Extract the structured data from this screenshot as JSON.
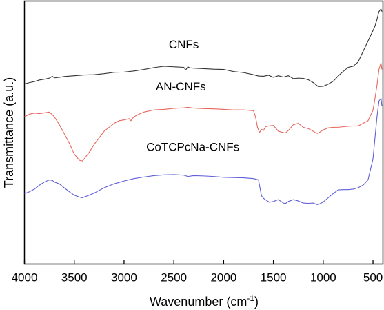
{
  "chart_data": {
    "type": "line",
    "xlabel": "Wavenumber (cm",
    "xlabel_sup": "-1",
    "xlabel_suffix": ")",
    "ylabel": "Transmittance (a.u.)",
    "xlim": [
      4000,
      400
    ],
    "x_reversed": true,
    "ylim": [
      0,
      1
    ],
    "y_ticks_labeled": false,
    "grid": false,
    "x_ticks": [
      4000,
      3500,
      3000,
      2500,
      2000,
      1500,
      1000,
      500
    ],
    "x_tick_labels": [
      "4000",
      "3500",
      "3000",
      "2500",
      "2000",
      "1500",
      "1000",
      "500"
    ],
    "series": [
      {
        "name": "CNFs",
        "color": "#333333",
        "x": [
          4000,
          3950,
          3900,
          3850,
          3800,
          3750,
          3720,
          3700,
          3650,
          3600,
          3500,
          3400,
          3300,
          3200,
          3100,
          3000,
          2900,
          2800,
          2700,
          2600,
          2500,
          2400,
          2380,
          2360,
          2340,
          2300,
          2200,
          2100,
          2000,
          1900,
          1800,
          1700,
          1650,
          1600,
          1550,
          1500,
          1450,
          1400,
          1350,
          1300,
          1250,
          1200,
          1150,
          1100,
          1050,
          1000,
          950,
          900,
          850,
          800,
          750,
          700,
          650,
          600,
          550,
          500,
          480,
          460,
          440,
          420,
          410
        ],
        "y": [
          0.685,
          0.69,
          0.694,
          0.7,
          0.703,
          0.707,
          0.714,
          0.708,
          0.71,
          0.713,
          0.716,
          0.719,
          0.72,
          0.724,
          0.729,
          0.73,
          0.734,
          0.74,
          0.747,
          0.752,
          0.75,
          0.748,
          0.738,
          0.75,
          0.746,
          0.745,
          0.743,
          0.741,
          0.74,
          0.732,
          0.728,
          0.72,
          0.715,
          0.714,
          0.718,
          0.71,
          0.716,
          0.711,
          0.716,
          0.705,
          0.707,
          0.706,
          0.701,
          0.69,
          0.675,
          0.676,
          0.684,
          0.695,
          0.715,
          0.732,
          0.748,
          0.752,
          0.768,
          0.808,
          0.848,
          0.888,
          0.905,
          0.93,
          0.96,
          0.97,
          0.96
        ]
      },
      {
        "name": "AN-CNFs",
        "color": "#e8665d",
        "x": [
          4000,
          3950,
          3900,
          3850,
          3800,
          3750,
          3720,
          3700,
          3650,
          3600,
          3550,
          3500,
          3450,
          3420,
          3400,
          3350,
          3300,
          3250,
          3200,
          3150,
          3100,
          3050,
          3000,
          2950,
          2930,
          2920,
          2900,
          2850,
          2800,
          2700,
          2600,
          2500,
          2400,
          2360,
          2300,
          2200,
          2100,
          2000,
          1900,
          1800,
          1700,
          1680,
          1660,
          1640,
          1620,
          1600,
          1580,
          1550,
          1500,
          1450,
          1400,
          1380,
          1350,
          1300,
          1250,
          1200,
          1150,
          1100,
          1080,
          1060,
          1040,
          1000,
          950,
          900,
          850,
          800,
          750,
          700,
          650,
          600,
          550,
          500,
          480,
          460,
          440,
          420,
          410
        ],
        "y": [
          0.56,
          0.57,
          0.574,
          0.572,
          0.575,
          0.578,
          0.568,
          0.56,
          0.53,
          0.495,
          0.46,
          0.418,
          0.395,
          0.392,
          0.4,
          0.425,
          0.455,
          0.48,
          0.505,
          0.52,
          0.535,
          0.545,
          0.548,
          0.553,
          0.545,
          0.552,
          0.56,
          0.57,
          0.578,
          0.586,
          0.588,
          0.592,
          0.594,
          0.596,
          0.593,
          0.591,
          0.59,
          0.588,
          0.586,
          0.586,
          0.583,
          0.56,
          0.52,
          0.5,
          0.512,
          0.508,
          0.522,
          0.525,
          0.527,
          0.505,
          0.5,
          0.498,
          0.508,
          0.53,
          0.535,
          0.52,
          0.515,
          0.505,
          0.5,
          0.497,
          0.5,
          0.51,
          0.518,
          0.52,
          0.52,
          0.522,
          0.524,
          0.525,
          0.525,
          0.535,
          0.545,
          0.585,
          0.63,
          0.68,
          0.74,
          0.765,
          0.74
        ]
      },
      {
        "name": "CoTCPcNa-CNFs",
        "color": "#5e5ed8",
        "x": [
          4000,
          3950,
          3900,
          3850,
          3800,
          3750,
          3720,
          3700,
          3650,
          3600,
          3550,
          3500,
          3450,
          3420,
          3400,
          3350,
          3300,
          3250,
          3200,
          3100,
          3000,
          2900,
          2800,
          2700,
          2600,
          2500,
          2400,
          2360,
          2300,
          2200,
          2100,
          2000,
          1900,
          1800,
          1700,
          1650,
          1620,
          1600,
          1580,
          1560,
          1540,
          1500,
          1450,
          1400,
          1380,
          1350,
          1300,
          1250,
          1200,
          1150,
          1100,
          1060,
          1040,
          1000,
          950,
          900,
          850,
          800,
          750,
          700,
          650,
          600,
          550,
          500,
          480,
          460,
          440,
          420,
          410
        ],
        "y": [
          0.268,
          0.275,
          0.285,
          0.3,
          0.312,
          0.32,
          0.318,
          0.312,
          0.305,
          0.29,
          0.275,
          0.262,
          0.255,
          0.252,
          0.255,
          0.262,
          0.27,
          0.28,
          0.29,
          0.305,
          0.316,
          0.325,
          0.331,
          0.336,
          0.339,
          0.34,
          0.338,
          0.333,
          0.336,
          0.335,
          0.333,
          0.33,
          0.329,
          0.328,
          0.325,
          0.32,
          0.26,
          0.25,
          0.245,
          0.24,
          0.235,
          0.238,
          0.245,
          0.232,
          0.23,
          0.238,
          0.245,
          0.24,
          0.232,
          0.231,
          0.232,
          0.226,
          0.228,
          0.236,
          0.252,
          0.268,
          0.282,
          0.283,
          0.283,
          0.285,
          0.29,
          0.3,
          0.32,
          0.4,
          0.48,
          0.56,
          0.62,
          0.63,
          0.6
        ]
      }
    ],
    "series_labels": [
      {
        "text": "CNFs",
        "x": 2400,
        "y": 0.82
      },
      {
        "text": "AN-CNFs",
        "x": 2430,
        "y": 0.66
      },
      {
        "text": "CoTCPcNa-CNFs",
        "x": 2310,
        "y": 0.43
      }
    ]
  }
}
